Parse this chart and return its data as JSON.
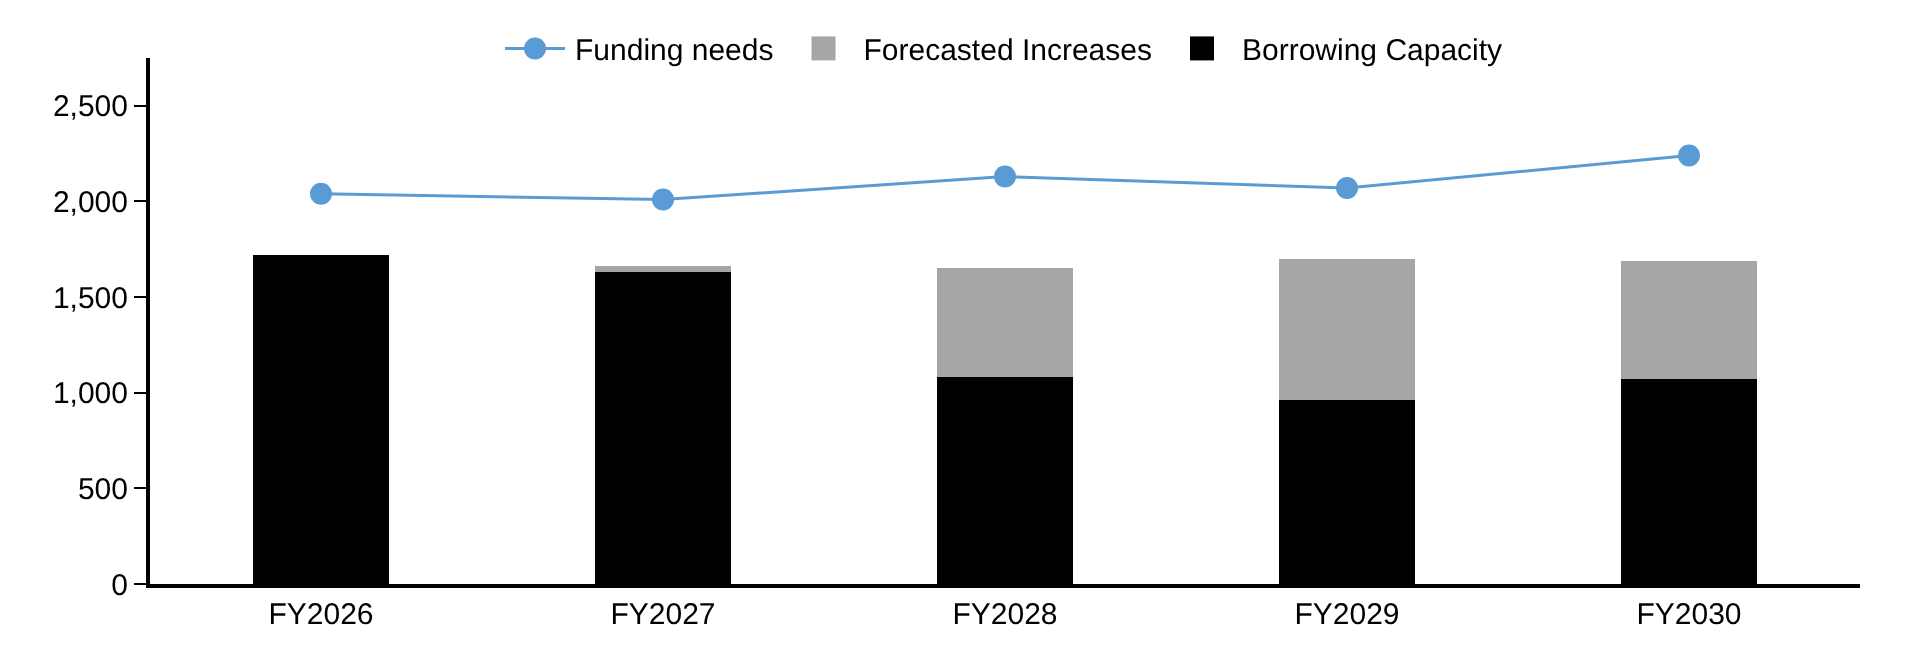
{
  "chart_data": {
    "type": "bar",
    "stacked": true,
    "categories": [
      "FY2026",
      "FY2027",
      "FY2028",
      "FY2029",
      "FY2030"
    ],
    "series": [
      {
        "name": "Borrowing Capacity",
        "color": "#000000",
        "values": [
          1720,
          1640,
          1080,
          960,
          1070
        ]
      },
      {
        "name": "Forecasted Increases",
        "color": "#a6a6a6",
        "values": [
          0,
          20,
          570,
          740,
          620
        ]
      },
      {
        "name": "Funding needs",
        "type": "line",
        "color": "#5b9bd5",
        "marker": "circle",
        "values": [
          2040,
          2010,
          2130,
          2070,
          2240
        ]
      }
    ],
    "ylim": [
      0,
      2750
    ],
    "yticks": [
      {
        "value": 0,
        "label": "0"
      },
      {
        "value": 500,
        "label": "500"
      },
      {
        "value": 1000,
        "label": "1,000"
      },
      {
        "value": 1500,
        "label": "1,500"
      },
      {
        "value": 2000,
        "label": "2,000"
      },
      {
        "value": 2500,
        "label": "2,500"
      }
    ],
    "grid": false,
    "legend": "top"
  }
}
